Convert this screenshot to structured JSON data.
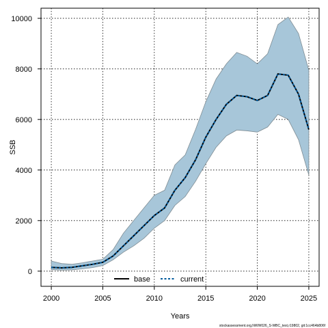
{
  "chart_data": {
    "type": "area",
    "xlabel": "Years",
    "ylabel": "SSB",
    "xlim": [
      1999,
      2026
    ],
    "ylim": [
      -600,
      10400
    ],
    "xticks": [
      2000,
      2005,
      2010,
      2015,
      2020,
      2025
    ],
    "yticks": [
      0,
      2000,
      4000,
      6000,
      8000,
      10000
    ],
    "grid": true,
    "legend_position": "bottom",
    "footnote": "stockassessment.org,NWW026_S-WBC_test,r19802, git:1cc464b806f",
    "x": [
      2000,
      2001,
      2002,
      2003,
      2004,
      2005,
      2006,
      2007,
      2008,
      2009,
      2010,
      2011,
      2012,
      2013,
      2014,
      2015,
      2016,
      2017,
      2018,
      2019,
      2020,
      2021,
      2022,
      2023,
      2024,
      2025
    ],
    "series": [
      {
        "name": "base",
        "style": "solid",
        "color": "#000000",
        "values": [
          150,
          130,
          150,
          210,
          270,
          350,
          600,
          1000,
          1400,
          1800,
          2200,
          2500,
          3200,
          3700,
          4400,
          5300,
          6000,
          6600,
          6950,
          6900,
          6750,
          6950,
          7800,
          7750,
          7000,
          5600
        ]
      },
      {
        "name": "current",
        "style": "dashed",
        "color": "#005a9c",
        "values": [
          150,
          130,
          150,
          210,
          270,
          350,
          600,
          1000,
          1400,
          1800,
          2200,
          2500,
          3200,
          3700,
          4400,
          5300,
          6000,
          6600,
          6950,
          6900,
          6750,
          6950,
          7800,
          7750,
          7000,
          5600
        ]
      }
    ],
    "band": {
      "fill": "#a7c6d9",
      "stroke": "#7f8c93",
      "lower": [
        60,
        40,
        50,
        90,
        140,
        220,
        450,
        750,
        1000,
        1300,
        1700,
        2000,
        2600,
        2950,
        3550,
        4250,
        4900,
        5350,
        5580,
        5550,
        5500,
        5700,
        6200,
        6000,
        5200,
        3800
      ],
      "upper": [
        400,
        300,
        270,
        330,
        400,
        470,
        850,
        1500,
        2000,
        2500,
        3000,
        3200,
        4200,
        4600,
        5600,
        6700,
        7600,
        8200,
        8650,
        8500,
        8200,
        8600,
        9750,
        10050,
        9400,
        7950
      ]
    }
  }
}
